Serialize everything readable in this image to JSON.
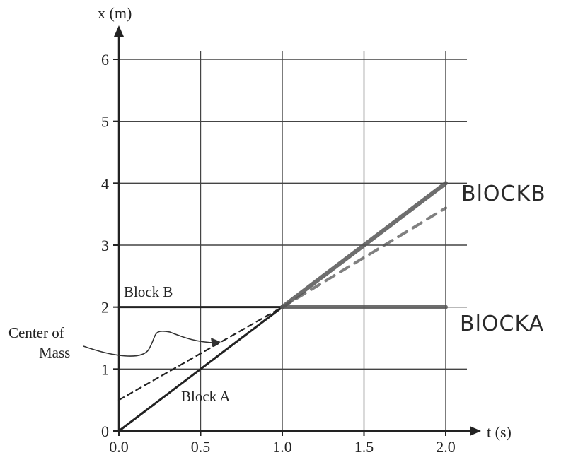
{
  "chart_data": {
    "type": "line",
    "xlabel": "t (s)",
    "ylabel": "x (m)",
    "xlim": [
      0,
      2.0
    ],
    "ylim": [
      0,
      6
    ],
    "x_ticks": [
      "0.0",
      "0.5",
      "1.0",
      "1.5",
      "2.0"
    ],
    "y_ticks": [
      "0",
      "1",
      "2",
      "3",
      "4",
      "5",
      "6"
    ],
    "grid": true,
    "series": [
      {
        "name": "Block A",
        "style": "solid",
        "color": "#222222",
        "x": [
          0,
          1.0
        ],
        "y": [
          0,
          2
        ]
      },
      {
        "name": "Block B",
        "style": "solid",
        "color": "#222222",
        "x": [
          0,
          1.0
        ],
        "y": [
          2,
          2
        ]
      },
      {
        "name": "Center of Mass",
        "style": "dashed",
        "color": "#222222",
        "x": [
          0,
          1.0
        ],
        "y": [
          0.5,
          2
        ]
      },
      {
        "name": "BlOCKB",
        "style": "marker",
        "color": "#555555",
        "x": [
          1.0,
          2.0
        ],
        "y": [
          2,
          4
        ]
      },
      {
        "name": "BlOCKA",
        "style": "marker",
        "color": "#555555",
        "x": [
          1.0,
          2.0
        ],
        "y": [
          2,
          2
        ]
      },
      {
        "name": "",
        "style": "marker-dashed",
        "color": "#555555",
        "x": [
          1.0,
          2.0
        ],
        "y": [
          2,
          3.6
        ]
      }
    ],
    "annotations": {
      "block_b": "Block B",
      "center_line1": "Center of",
      "center_line2": "Mass",
      "block_a": "Block A",
      "hand_block_b": "BlOCKB",
      "hand_block_a": "BlOCKA"
    }
  }
}
